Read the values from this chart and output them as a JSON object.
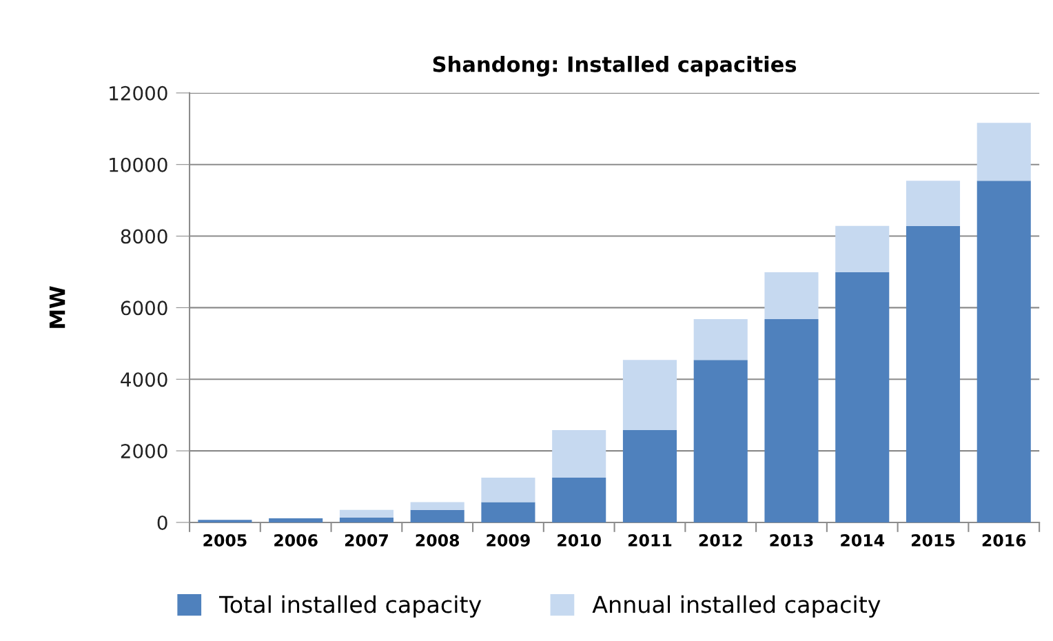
{
  "chart_data": {
    "type": "bar",
    "title": "Shandong: Installed capacities",
    "ylabel": "MW",
    "categories": [
      "2005",
      "2006",
      "2007",
      "2008",
      "2009",
      "2010",
      "2011",
      "2012",
      "2013",
      "2014",
      "2015",
      "2016"
    ],
    "stacked": true,
    "series": [
      {
        "name": "Total installed capacity",
        "color": "#4f81bd",
        "values": [
          70,
          115,
          140,
          350,
          565,
          1250,
          2580,
          4540,
          5680,
          6990,
          8285,
          9545
        ]
      },
      {
        "name": "Annual installed capacity",
        "color": "#c6d9f0",
        "values": [
          null,
          null,
          210,
          215,
          685,
          1330,
          1960,
          1140,
          1310,
          1295,
          1260,
          1620
        ]
      }
    ],
    "ylim": [
      0,
      12000
    ],
    "yticks": [
      0,
      2000,
      4000,
      6000,
      8000,
      10000,
      12000
    ],
    "grid": "y",
    "legend": "bottom"
  }
}
